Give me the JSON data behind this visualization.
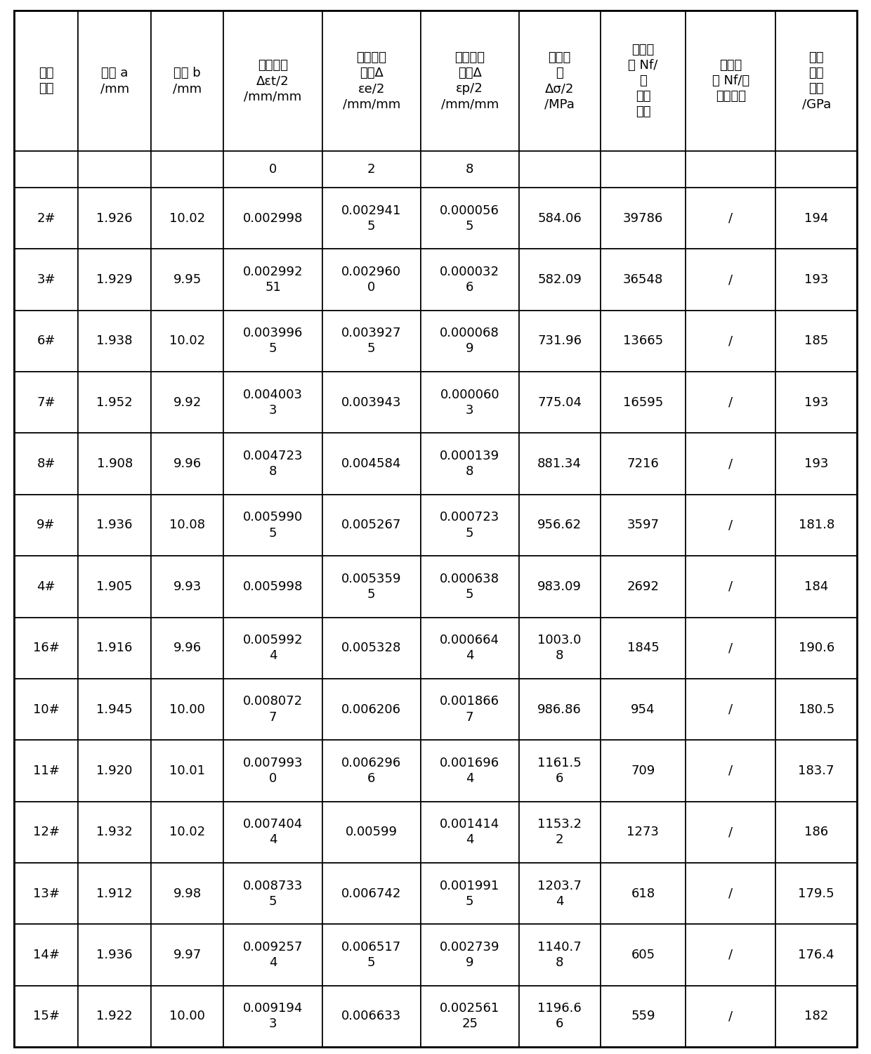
{
  "headers": [
    "试样\n编号",
    "厘度 a\n/mm",
    "宽度 b\n/mm",
    "应变幅値\nΔεt/2\n/mm/mm",
    "弹性应变\n幅値Δ\nεe/2\n/mm/mm",
    "塑性应变\n幅値Δ\nεp/2\n/mm/mm",
    "应力幅\n値\nΔσ/2\n/MPa",
    "循环寿\n命 Nf/\n次\n（低\n周）",
    "循环寿\n命 Nf/次\n（高周）",
    "动态\n弹性\n模量\n/GPa"
  ],
  "subrow": [
    "",
    "",
    "",
    "0",
    "2",
    "8",
    "",
    "",
    "",
    ""
  ],
  "rows": [
    [
      "2#",
      "1.926",
      "10.02",
      "0.002998",
      "0.002941\n5",
      "0.000056\n5",
      "584.06",
      "39786",
      "/",
      "194"
    ],
    [
      "3#",
      "1.929",
      "9.95",
      "0.002992\n51",
      "0.002960\n0",
      "0.000032\n6",
      "582.09",
      "36548",
      "/",
      "193"
    ],
    [
      "6#",
      "1.938",
      "10.02",
      "0.003996\n5",
      "0.003927\n5",
      "0.000068\n9",
      "731.96",
      "13665",
      "/",
      "185"
    ],
    [
      "7#",
      "1.952",
      "9.92",
      "0.004003\n3",
      "0.003943",
      "0.000060\n3",
      "775.04",
      "16595",
      "/",
      "193"
    ],
    [
      "8#",
      "1.908",
      "9.96",
      "0.004723\n8",
      "0.004584",
      "0.000139\n8",
      "881.34",
      "7216",
      "/",
      "193"
    ],
    [
      "9#",
      "1.936",
      "10.08",
      "0.005990\n5",
      "0.005267",
      "0.000723\n5",
      "956.62",
      "3597",
      "/",
      "181.8"
    ],
    [
      "4#",
      "1.905",
      "9.93",
      "0.005998",
      "0.005359\n5",
      "0.000638\n5",
      "983.09",
      "2692",
      "/",
      "184"
    ],
    [
      "16#",
      "1.916",
      "9.96",
      "0.005992\n4",
      "0.005328",
      "0.000664\n4",
      "1003.0\n8",
      "1845",
      "/",
      "190.6"
    ],
    [
      "10#",
      "1.945",
      "10.00",
      "0.008072\n7",
      "0.006206",
      "0.001866\n7",
      "986.86",
      "954",
      "/",
      "180.5"
    ],
    [
      "11#",
      "1.920",
      "10.01",
      "0.007993\n0",
      "0.006296\n6",
      "0.001696\n4",
      "1161.5\n6",
      "709",
      "/",
      "183.7"
    ],
    [
      "12#",
      "1.932",
      "10.02",
      "0.007404\n4",
      "0.00599",
      "0.001414\n4",
      "1153.2\n2",
      "1273",
      "/",
      "186"
    ],
    [
      "13#",
      "1.912",
      "9.98",
      "0.008733\n5",
      "0.006742",
      "0.001991\n5",
      "1203.7\n4",
      "618",
      "/",
      "179.5"
    ],
    [
      "14#",
      "1.936",
      "9.97",
      "0.009257\n4",
      "0.006517\n5",
      "0.002739\n9",
      "1140.7\n8",
      "605",
      "/",
      "176.4"
    ],
    [
      "15#",
      "1.922",
      "10.00",
      "0.009194\n3",
      "0.006633",
      "0.002561\n25",
      "1196.6\n6",
      "559",
      "/",
      "182"
    ]
  ],
  "col_widths_ratio": [
    0.75,
    0.85,
    0.85,
    1.15,
    1.15,
    1.15,
    0.95,
    1.0,
    1.05,
    0.95
  ],
  "bg_color": "#ffffff",
  "border_color": "#000000",
  "text_color": "#000000"
}
